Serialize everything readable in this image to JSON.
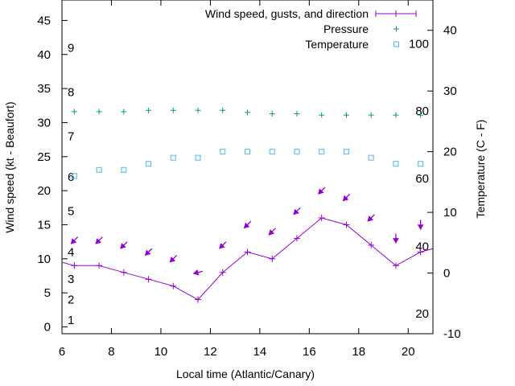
{
  "chart_data": {
    "type": "line",
    "xlabel": "Local time (Atlantic/Canary)",
    "ylabel": "Wind speed (kt - Beaufort)",
    "y2label": "Temperature (C - F)",
    "xlim": [
      6,
      21
    ],
    "ylim": [
      -1,
      48
    ],
    "y2lim": [
      -10,
      45
    ],
    "x_ticks": [
      "6",
      "8",
      "10",
      "12",
      "14",
      "16",
      "18",
      "20"
    ],
    "y_ticks": [
      "0",
      "5",
      "10",
      "15",
      "20",
      "25",
      "30",
      "35",
      "40",
      "45"
    ],
    "y2_ticks": [
      "-10",
      "0",
      "10",
      "20",
      "30",
      "40"
    ],
    "beaufort_labels": [
      {
        "text": "1",
        "y": 1
      },
      {
        "text": "2",
        "y": 4
      },
      {
        "text": "3",
        "y": 7
      },
      {
        "text": "4",
        "y": 11
      },
      {
        "text": "5",
        "y": 17
      },
      {
        "text": "6",
        "y": 22
      },
      {
        "text": "7",
        "y": 28
      },
      {
        "text": "8",
        "y": 34.5
      },
      {
        "text": "9",
        "y": 41
      }
    ],
    "fahrenheit_labels": [
      {
        "text": "20",
        "y2": -6.7
      },
      {
        "text": "40",
        "y2": 4.4
      },
      {
        "text": "60",
        "y2": 15.6
      },
      {
        "text": "80",
        "y2": 26.7
      },
      {
        "text": "100",
        "y2": 37.8
      }
    ],
    "grid": false,
    "legend_position": "top-right",
    "colors": {
      "wind": "#9400d3",
      "pressure": "#009e73",
      "temperature": "#56b4e9"
    },
    "series": [
      {
        "name": "Wind speed, gusts, and direction",
        "x": [
          6,
          6.5,
          7.5,
          8.5,
          9.5,
          10.5,
          11.5,
          12.5,
          13.5,
          14.5,
          15.5,
          16.5,
          17.5,
          18.5,
          19.5,
          20.5,
          21
        ],
        "values": [
          9.5,
          9,
          9,
          8,
          7,
          6,
          4,
          8,
          11,
          10,
          13,
          16,
          15,
          12,
          9,
          11,
          11.5
        ],
        "direction_arrows": [
          {
            "x": 6.5,
            "y": 12.7,
            "dir": "sw"
          },
          {
            "x": 7.5,
            "y": 12.7,
            "dir": "sw"
          },
          {
            "x": 8.5,
            "y": 12.0,
            "dir": "sw"
          },
          {
            "x": 9.5,
            "y": 11.0,
            "dir": "sw"
          },
          {
            "x": 10.5,
            "y": 10.0,
            "dir": "sw"
          },
          {
            "x": 11.5,
            "y": 8.0,
            "dir": "w"
          },
          {
            "x": 12.5,
            "y": 12.0,
            "dir": "sw"
          },
          {
            "x": 13.5,
            "y": 15.0,
            "dir": "sw"
          },
          {
            "x": 14.5,
            "y": 14.0,
            "dir": "sw"
          },
          {
            "x": 15.5,
            "y": 17.0,
            "dir": "sw"
          },
          {
            "x": 16.5,
            "y": 20.0,
            "dir": "sw"
          },
          {
            "x": 17.5,
            "y": 19.0,
            "dir": "sw"
          },
          {
            "x": 18.5,
            "y": 16.0,
            "dir": "sw"
          },
          {
            "x": 19.5,
            "y": 13.0,
            "dir": "s"
          },
          {
            "x": 20.5,
            "y": 15.0,
            "dir": "s"
          }
        ]
      },
      {
        "name": "Pressure",
        "x": [
          6.5,
          7.5,
          8.5,
          9.5,
          10.5,
          11.5,
          12.5,
          13.5,
          14.5,
          15.5,
          16.5,
          17.5,
          18.5,
          19.5,
          20.5
        ],
        "values": [
          31.6,
          31.6,
          31.6,
          31.8,
          31.8,
          31.8,
          31.8,
          31.5,
          31.3,
          31.3,
          31.1,
          31.1,
          31.1,
          31.1,
          31.1
        ]
      },
      {
        "name": "Temperature",
        "axis": "y2",
        "x": [
          6.5,
          7.5,
          8.5,
          9.5,
          10.5,
          11.5,
          12.5,
          13.5,
          14.5,
          15.5,
          16.5,
          17.5,
          18.5,
          19.5,
          20.5
        ],
        "values": [
          16,
          17,
          17,
          18,
          19,
          19,
          20,
          20,
          20,
          20,
          20,
          20,
          19,
          18,
          18
        ]
      }
    ]
  }
}
